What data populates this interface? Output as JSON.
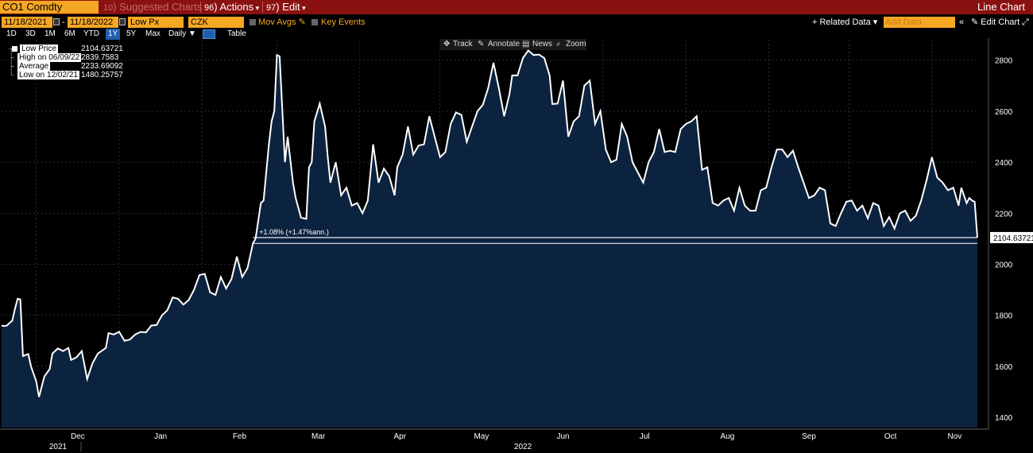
{
  "topbar": {
    "ticker": "CO1 Comdty",
    "suggested_num": "10",
    "suggested": "Suggested Charts",
    "actions_num": "96",
    "actions": "Actions",
    "edit_num": "97",
    "edit": "Edit",
    "title": "Line Chart"
  },
  "controls": {
    "start_date": "11/18/2021",
    "end_date": "11/18/2022",
    "field": "Low Px",
    "currency": "CZK",
    "mov_avgs": "Mov Avgs",
    "key_events": "Key Events",
    "related_data": "+ Related Data ▾",
    "add_data_placeholder": "Add Data",
    "edit_chart": "Edit Chart"
  },
  "ranges": [
    "1D",
    "3D",
    "1M",
    "6M",
    "YTD",
    "1Y",
    "5Y",
    "Max"
  ],
  "selected_range": "1Y",
  "frequency": "Daily ▼",
  "table_label": "Table",
  "chart_tools": [
    "Track",
    "Annotate",
    "News",
    "Zoom"
  ],
  "legend": {
    "low_price_label": "Low Price",
    "low_price_value": "2104.63721",
    "high_label": "High on 06/09/22",
    "high_value": "2839.7583",
    "average_label": "Average",
    "average_value": "2233.69092",
    "low_label": "Low on 12/02/21",
    "low_value": "1480.25757"
  },
  "colors": {
    "line": "#ffffff",
    "area_fill": "#0c2340",
    "accent_orange": "#f5a623",
    "toolbar_red": "#8b1111",
    "selected_blue": "#1f5fb0"
  },
  "chart_data": {
    "type": "area",
    "series_name": "Low Price",
    "y_axis_side": "right",
    "ylim": [
      1360,
      2880
    ],
    "y_ticks": [
      1400,
      1600,
      1800,
      2000,
      2200,
      2400,
      2600,
      2800
    ],
    "x_tick_labels": [
      "Dec",
      "Jan",
      "Feb",
      "Mar",
      "Apr",
      "May",
      "Jun",
      "Jul",
      "Aug",
      "Sep",
      "Oct",
      "Nov"
    ],
    "year_labels": [
      "2021",
      "2022"
    ],
    "x_start": "2021-11-18",
    "x_end": "2022-11-18",
    "last_value_label": "2104.63721",
    "change_annotation": "+1.08% (+1.47%ann.)",
    "reference_value": 2082,
    "grid": true,
    "points": [
      [
        "2021-11-18",
        1760
      ],
      [
        "2021-11-19",
        1758
      ],
      [
        "2021-11-20",
        1760
      ],
      [
        "2021-11-22",
        1780
      ],
      [
        "2021-11-23",
        1825
      ],
      [
        "2021-11-24",
        1865
      ],
      [
        "2021-11-25",
        1862
      ],
      [
        "2021-11-26",
        1640
      ],
      [
        "2021-11-28",
        1648
      ],
      [
        "2021-11-29",
        1600
      ],
      [
        "2021-12-01",
        1540
      ],
      [
        "2021-12-02",
        1480
      ],
      [
        "2021-12-04",
        1560
      ],
      [
        "2021-12-06",
        1590
      ],
      [
        "2021-12-07",
        1650
      ],
      [
        "2021-12-09",
        1670
      ],
      [
        "2021-12-11",
        1660
      ],
      [
        "2021-12-13",
        1672
      ],
      [
        "2021-12-14",
        1625
      ],
      [
        "2021-12-16",
        1635
      ],
      [
        "2021-12-18",
        1660
      ],
      [
        "2021-12-20",
        1550
      ],
      [
        "2021-12-22",
        1612
      ],
      [
        "2021-12-24",
        1650
      ],
      [
        "2021-12-27",
        1672
      ],
      [
        "2021-12-28",
        1730
      ],
      [
        "2021-12-30",
        1725
      ],
      [
        "2022-01-01",
        1735
      ],
      [
        "2022-01-03",
        1700
      ],
      [
        "2022-01-05",
        1705
      ],
      [
        "2022-01-07",
        1725
      ],
      [
        "2022-01-09",
        1735
      ],
      [
        "2022-01-11",
        1733
      ],
      [
        "2022-01-13",
        1760
      ],
      [
        "2022-01-15",
        1762
      ],
      [
        "2022-01-17",
        1800
      ],
      [
        "2022-01-19",
        1820
      ],
      [
        "2022-01-21",
        1870
      ],
      [
        "2022-01-23",
        1865
      ],
      [
        "2022-01-25",
        1842
      ],
      [
        "2022-01-27",
        1860
      ],
      [
        "2022-01-29",
        1900
      ],
      [
        "2022-01-31",
        1958
      ],
      [
        "2022-02-02",
        1962
      ],
      [
        "2022-02-04",
        1890
      ],
      [
        "2022-02-06",
        1880
      ],
      [
        "2022-02-08",
        1950
      ],
      [
        "2022-02-10",
        1905
      ],
      [
        "2022-02-12",
        1942
      ],
      [
        "2022-02-14",
        2030
      ],
      [
        "2022-02-16",
        1950
      ],
      [
        "2022-02-18",
        1985
      ],
      [
        "2022-02-20",
        2082
      ],
      [
        "2022-02-21",
        2100
      ],
      [
        "2022-02-23",
        2240
      ],
      [
        "2022-02-24",
        2250
      ],
      [
        "2022-02-26",
        2470
      ],
      [
        "2022-02-27",
        2560
      ],
      [
        "2022-02-28",
        2600
      ],
      [
        "2022-03-01",
        2820
      ],
      [
        "2022-03-02",
        2815
      ],
      [
        "2022-03-04",
        2400
      ],
      [
        "2022-03-05",
        2500
      ],
      [
        "2022-03-07",
        2320
      ],
      [
        "2022-03-08",
        2260
      ],
      [
        "2022-03-10",
        2183
      ],
      [
        "2022-03-12",
        2178
      ],
      [
        "2022-03-13",
        2380
      ],
      [
        "2022-03-14",
        2400
      ],
      [
        "2022-03-15",
        2560
      ],
      [
        "2022-03-17",
        2630
      ],
      [
        "2022-03-19",
        2540
      ],
      [
        "2022-03-20",
        2420
      ],
      [
        "2022-03-21",
        2320
      ],
      [
        "2022-03-23",
        2400
      ],
      [
        "2022-03-25",
        2270
      ],
      [
        "2022-03-27",
        2300
      ],
      [
        "2022-03-29",
        2230
      ],
      [
        "2022-03-31",
        2240
      ],
      [
        "2022-04-02",
        2200
      ],
      [
        "2022-04-04",
        2250
      ],
      [
        "2022-04-06",
        2470
      ],
      [
        "2022-04-08",
        2320
      ],
      [
        "2022-04-10",
        2375
      ],
      [
        "2022-04-12",
        2345
      ],
      [
        "2022-04-14",
        2270
      ],
      [
        "2022-04-15",
        2380
      ],
      [
        "2022-04-17",
        2430
      ],
      [
        "2022-04-19",
        2540
      ],
      [
        "2022-04-21",
        2430
      ],
      [
        "2022-04-23",
        2465
      ],
      [
        "2022-04-25",
        2470
      ],
      [
        "2022-04-27",
        2580
      ],
      [
        "2022-04-29",
        2500
      ],
      [
        "2022-05-01",
        2420
      ],
      [
        "2022-05-03",
        2440
      ],
      [
        "2022-05-05",
        2550
      ],
      [
        "2022-05-07",
        2595
      ],
      [
        "2022-05-09",
        2585
      ],
      [
        "2022-05-11",
        2480
      ],
      [
        "2022-05-13",
        2540
      ],
      [
        "2022-05-15",
        2600
      ],
      [
        "2022-05-17",
        2625
      ],
      [
        "2022-05-19",
        2690
      ],
      [
        "2022-05-21",
        2790
      ],
      [
        "2022-05-23",
        2690
      ],
      [
        "2022-05-25",
        2580
      ],
      [
        "2022-05-27",
        2668
      ],
      [
        "2022-05-28",
        2740
      ],
      [
        "2022-05-30",
        2740
      ],
      [
        "2022-06-01",
        2808
      ],
      [
        "2022-06-03",
        2838
      ],
      [
        "2022-06-05",
        2820
      ],
      [
        "2022-06-07",
        2822
      ],
      [
        "2022-06-09",
        2808
      ],
      [
        "2022-06-11",
        2740
      ],
      [
        "2022-06-12",
        2628
      ],
      [
        "2022-06-14",
        2630
      ],
      [
        "2022-06-16",
        2720
      ],
      [
        "2022-06-18",
        2500
      ],
      [
        "2022-06-20",
        2560
      ],
      [
        "2022-06-22",
        2580
      ],
      [
        "2022-06-24",
        2700
      ],
      [
        "2022-06-26",
        2720
      ],
      [
        "2022-06-28",
        2550
      ],
      [
        "2022-06-30",
        2600
      ],
      [
        "2022-07-02",
        2450
      ],
      [
        "2022-07-04",
        2400
      ],
      [
        "2022-07-06",
        2410
      ],
      [
        "2022-07-08",
        2550
      ],
      [
        "2022-07-10",
        2500
      ],
      [
        "2022-07-12",
        2400
      ],
      [
        "2022-07-14",
        2360
      ],
      [
        "2022-07-16",
        2320
      ],
      [
        "2022-07-18",
        2400
      ],
      [
        "2022-07-20",
        2440
      ],
      [
        "2022-07-22",
        2530
      ],
      [
        "2022-07-24",
        2440
      ],
      [
        "2022-07-26",
        2445
      ],
      [
        "2022-07-28",
        2440
      ],
      [
        "2022-07-30",
        2530
      ],
      [
        "2022-08-01",
        2550
      ],
      [
        "2022-08-03",
        2560
      ],
      [
        "2022-08-05",
        2580
      ],
      [
        "2022-08-07",
        2370
      ],
      [
        "2022-08-09",
        2380
      ],
      [
        "2022-08-11",
        2240
      ],
      [
        "2022-08-13",
        2230
      ],
      [
        "2022-08-15",
        2250
      ],
      [
        "2022-08-17",
        2260
      ],
      [
        "2022-08-19",
        2210
      ],
      [
        "2022-08-21",
        2300
      ],
      [
        "2022-08-23",
        2230
      ],
      [
        "2022-08-25",
        2210
      ],
      [
        "2022-08-27",
        2210
      ],
      [
        "2022-08-29",
        2290
      ],
      [
        "2022-08-31",
        2300
      ],
      [
        "2022-09-02",
        2380
      ],
      [
        "2022-09-04",
        2450
      ],
      [
        "2022-09-06",
        2450
      ],
      [
        "2022-09-08",
        2420
      ],
      [
        "2022-09-10",
        2445
      ],
      [
        "2022-09-12",
        2380
      ],
      [
        "2022-09-14",
        2320
      ],
      [
        "2022-09-16",
        2260
      ],
      [
        "2022-09-18",
        2270
      ],
      [
        "2022-09-20",
        2300
      ],
      [
        "2022-09-22",
        2290
      ],
      [
        "2022-09-24",
        2160
      ],
      [
        "2022-09-26",
        2150
      ],
      [
        "2022-09-28",
        2200
      ],
      [
        "2022-09-30",
        2245
      ],
      [
        "2022-10-02",
        2250
      ],
      [
        "2022-10-04",
        2210
      ],
      [
        "2022-10-06",
        2230
      ],
      [
        "2022-10-08",
        2180
      ],
      [
        "2022-10-10",
        2240
      ],
      [
        "2022-10-12",
        2230
      ],
      [
        "2022-10-14",
        2150
      ],
      [
        "2022-10-16",
        2185
      ],
      [
        "2022-10-18",
        2140
      ],
      [
        "2022-10-20",
        2200
      ],
      [
        "2022-10-22",
        2210
      ],
      [
        "2022-10-24",
        2170
      ],
      [
        "2022-10-26",
        2190
      ],
      [
        "2022-10-28",
        2250
      ],
      [
        "2022-10-30",
        2330
      ],
      [
        "2022-11-01",
        2420
      ],
      [
        "2022-11-03",
        2340
      ],
      [
        "2022-11-05",
        2320
      ],
      [
        "2022-11-07",
        2290
      ],
      [
        "2022-11-09",
        2300
      ],
      [
        "2022-11-11",
        2230
      ],
      [
        "2022-11-12",
        2300
      ],
      [
        "2022-11-14",
        2240
      ],
      [
        "2022-11-15",
        2260
      ],
      [
        "2022-11-16",
        2250
      ],
      [
        "2022-11-17",
        2245
      ],
      [
        "2022-11-18",
        2104.63721
      ]
    ]
  }
}
